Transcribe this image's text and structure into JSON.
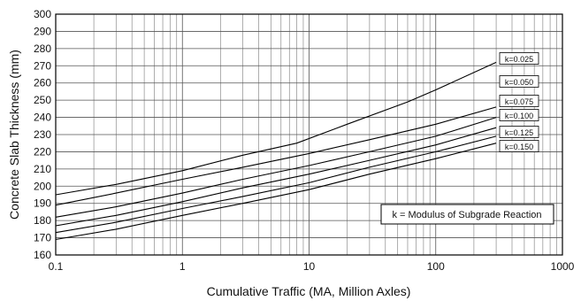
{
  "chart_data": {
    "type": "line",
    "xlabel": "Cumulative Traffic (MA, Million Axles)",
    "ylabel": "Concrete Slab Thickness (mm)",
    "xscale": "log",
    "xlim": [
      0.1,
      1000
    ],
    "ylim": [
      160,
      300
    ],
    "grid": true,
    "x_tick_labels": [
      "0.1",
      "1",
      "10",
      "100",
      "1000"
    ],
    "y_tick_labels": [
      "160",
      "170",
      "180",
      "190",
      "200",
      "210",
      "220",
      "230",
      "240",
      "250",
      "260",
      "270",
      "280",
      "290",
      "300"
    ],
    "annotation": "k = Modulus of Subgrade Reaction",
    "series": [
      {
        "name": "k=0.025",
        "x": [
          0.1,
          0.3,
          1,
          3,
          8,
          20,
          60,
          100,
          300
        ],
        "y": [
          195,
          201,
          209,
          218,
          225,
          236,
          249,
          256,
          272
        ]
      },
      {
        "name": "k=0.050",
        "x": [
          0.1,
          0.3,
          1,
          3,
          10,
          30,
          100,
          300
        ],
        "y": [
          189,
          196,
          204,
          211,
          219,
          227,
          236,
          246
        ]
      },
      {
        "name": "k=0.075",
        "x": [
          0.1,
          0.3,
          1,
          3,
          10,
          30,
          100,
          300
        ],
        "y": [
          182,
          188,
          196,
          204,
          212,
          220,
          229,
          240
        ]
      },
      {
        "name": "k=0.100",
        "x": [
          0.1,
          0.3,
          1,
          3,
          10,
          30,
          100,
          300
        ],
        "y": [
          177,
          183,
          191,
          199,
          207,
          215,
          224,
          234
        ]
      },
      {
        "name": "k=0.125",
        "x": [
          0.1,
          0.3,
          1,
          3,
          10,
          30,
          100,
          300
        ],
        "y": [
          173,
          179,
          187,
          194,
          202,
          211,
          220,
          229
        ]
      },
      {
        "name": "k=0.150",
        "x": [
          0.1,
          0.3,
          1,
          3,
          10,
          30,
          100,
          300
        ],
        "y": [
          169,
          175,
          183,
          190,
          198,
          207,
          216,
          225
        ]
      }
    ]
  }
}
